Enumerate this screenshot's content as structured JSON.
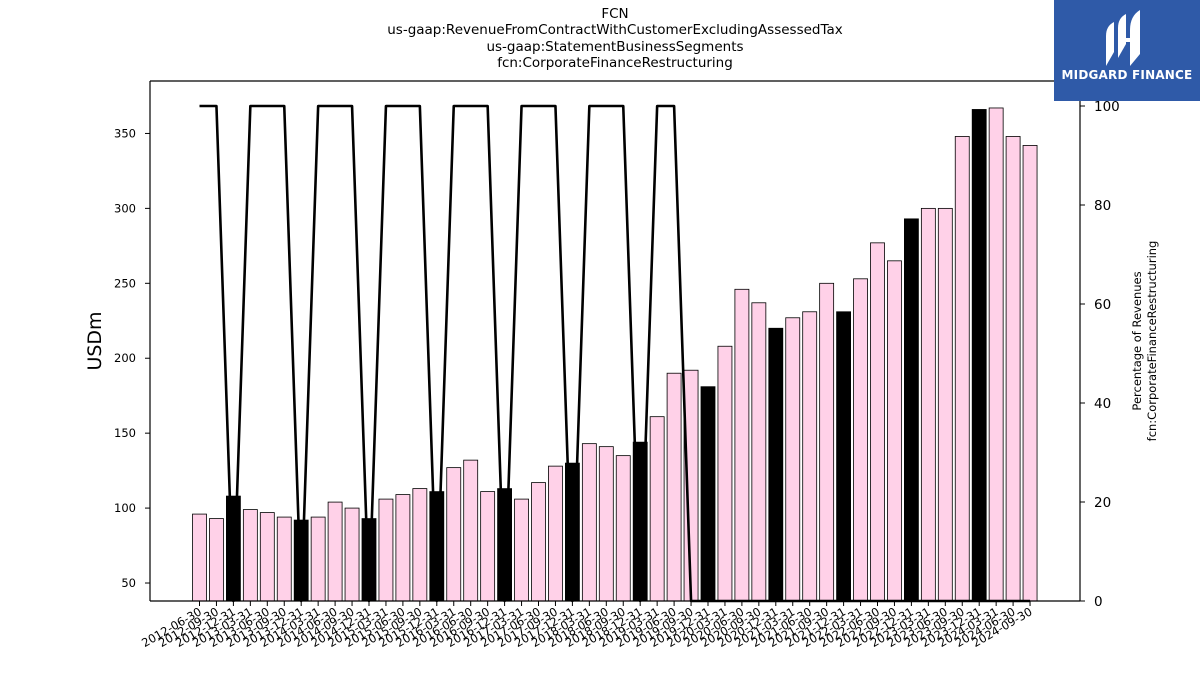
{
  "titles": {
    "line1": "FCN",
    "line2": "us-gaap:RevenueFromContractWithCustomerExcludingAssessedTax",
    "line3": "us-gaap:StatementBusinessSegments",
    "line4": "fcn:CorporateFinanceRestructuring"
  },
  "logo": {
    "text": "MIDGARD FINANCE",
    "background": "#2f5aa8"
  },
  "chart_data": {
    "type": "bar",
    "ylabel": "USDm",
    "y2label_line1": "Percentage of Revenues",
    "y2label_line2": "fcn:CorporateFinanceRestructuring",
    "ylim": [
      38,
      385
    ],
    "y2lim": [
      0,
      100
    ],
    "yticks": [
      50,
      100,
      150,
      200,
      250,
      300,
      350
    ],
    "y2ticks": [
      0,
      20,
      40,
      60,
      80,
      100
    ],
    "colors": {
      "quarter_bar": "#ffd1e8",
      "annual_bar": "#000000",
      "line": "#000000"
    },
    "categories": [
      "2012-06-30",
      "2012-09-30",
      "2012-12-31",
      "2013-03-31",
      "2013-06-30",
      "2013-09-30",
      "2013-12-31",
      "2014-03-31",
      "2014-06-30",
      "2014-09-30",
      "2014-12-31",
      "2015-03-31",
      "2015-06-30",
      "2015-09-30",
      "2015-12-31",
      "2016-03-31",
      "2016-06-30",
      "2016-09-30",
      "2016-12-31",
      "2017-03-31",
      "2017-06-30",
      "2017-09-30",
      "2017-12-31",
      "2018-03-31",
      "2018-06-30",
      "2018-09-30",
      "2018-12-31",
      "2019-03-31",
      "2019-06-30",
      "2019-09-30",
      "2019-12-31",
      "2020-03-31",
      "2020-06-30",
      "2020-09-30",
      "2020-12-31",
      "2021-03-31",
      "2021-06-30",
      "2021-09-30",
      "2021-12-31",
      "2022-03-31",
      "2022-06-30",
      "2022-09-30",
      "2022-12-31",
      "2023-03-31",
      "2023-06-30",
      "2023-09-30",
      "2023-12-31",
      "2024-03-31",
      "2024-06-30",
      "2024-09-30"
    ],
    "values": [
      96,
      93,
      108,
      99,
      97,
      94,
      92,
      94,
      104,
      100,
      93,
      106,
      109,
      113,
      111,
      127,
      132,
      111,
      113,
      106,
      117,
      128,
      130,
      143,
      141,
      135,
      144,
      161,
      190,
      192,
      181,
      208,
      246,
      237,
      220,
      227,
      231,
      250,
      231,
      253,
      277,
      265,
      293,
      300,
      300,
      348,
      366,
      367,
      348,
      342
    ],
    "annual_flags": [
      0,
      0,
      1,
      0,
      0,
      0,
      1,
      0,
      0,
      0,
      1,
      0,
      0,
      0,
      1,
      0,
      0,
      0,
      1,
      0,
      0,
      0,
      1,
      0,
      0,
      0,
      1,
      0,
      0,
      0,
      1,
      0,
      0,
      0,
      1,
      0,
      0,
      0,
      1,
      0,
      0,
      0,
      1,
      0,
      0,
      0,
      1,
      0,
      0,
      0
    ],
    "percentage": [
      100,
      100,
      0,
      100,
      100,
      100,
      0,
      100,
      100,
      100,
      0,
      100,
      100,
      100,
      0,
      100,
      100,
      100,
      0,
      100,
      100,
      100,
      0,
      100,
      100,
      100,
      0,
      100,
      100,
      0,
      0,
      0,
      0,
      0,
      0,
      0,
      0,
      0,
      0,
      0,
      0,
      0,
      0,
      0,
      0,
      0,
      0,
      0,
      0,
      0
    ]
  }
}
